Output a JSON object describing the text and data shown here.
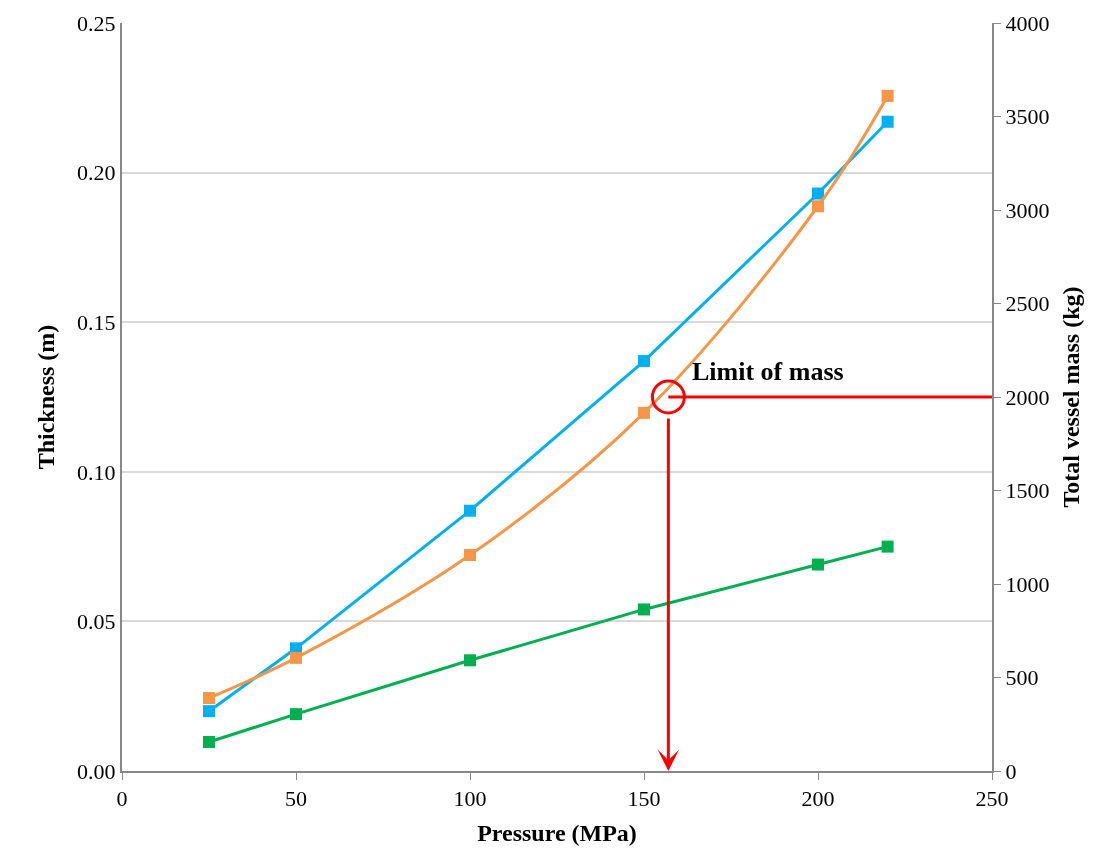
{
  "chart_data": {
    "type": "line",
    "xlabel": "Pressure (MPa)",
    "ylabel": "Thickness (m)",
    "y2label": "Total vessel mass (kg)",
    "x": [
      25,
      50,
      100,
      150,
      200,
      220
    ],
    "series": [
      {
        "color": "#00b0f0",
        "values": [
          0.02,
          0.041,
          0.087,
          0.137,
          0.193,
          0.217
        ]
      },
      {
        "color": "#00b050",
        "values": [
          0.0097,
          0.019,
          0.037,
          0.054,
          0.069,
          0.075
        ]
      },
      {
        "color": "#f79646",
        "axis": "y2",
        "values": [
          390,
          605,
          1155,
          1915,
          3020,
          3610
        ]
      }
    ],
    "xlim": [
      0,
      250
    ],
    "xticks": [
      0,
      50,
      100,
      150,
      200,
      250
    ],
    "ylim": [
      0,
      0.25
    ],
    "yticks": [
      {
        "value": 0,
        "label": "0.00"
      },
      {
        "value": 0.05,
        "label": "0.05"
      },
      {
        "value": 0.1,
        "label": "0.10"
      },
      {
        "value": 0.15,
        "label": "0.15"
      },
      {
        "value": 0.2,
        "label": "0.20"
      },
      {
        "value": 0.25,
        "label": "0.25"
      }
    ],
    "y2lim": [
      0,
      4000
    ],
    "y2ticks": [
      0,
      500,
      1000,
      1500,
      2000,
      2500,
      3000,
      3500,
      4000
    ],
    "ref_lines": [
      {
        "axis": "y2",
        "value": 2000,
        "label": "Limit of mass",
        "color": "#ff0000"
      },
      {
        "axis": "x",
        "value": 157,
        "color": "#ff0000"
      }
    ],
    "grid": "y",
    "marker": "square",
    "line_style": "solid"
  }
}
